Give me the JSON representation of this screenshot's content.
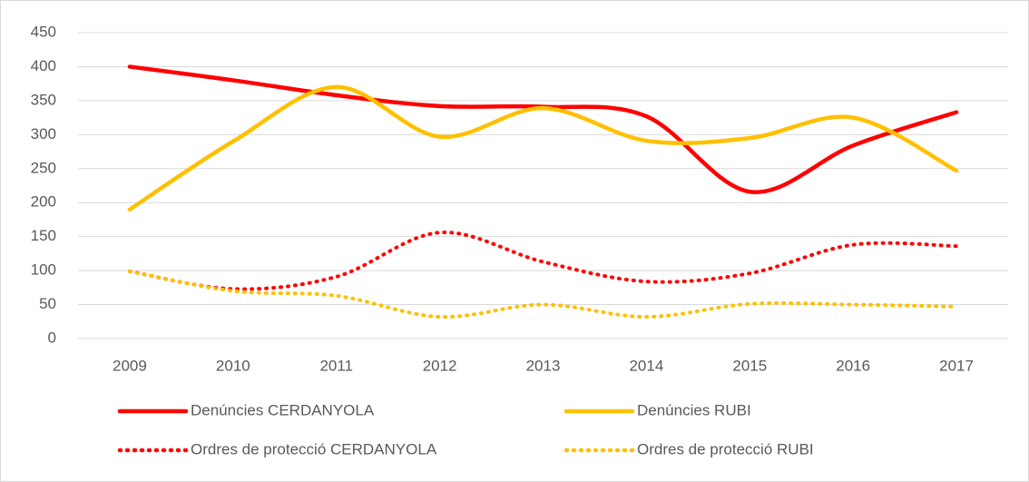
{
  "chart_data": {
    "type": "line",
    "categories": [
      "2009",
      "2010",
      "2011",
      "2012",
      "2013",
      "2014",
      "2015",
      "2016",
      "2017"
    ],
    "series": [
      {
        "name": "Denúncies CERDANYOLA",
        "color": "#ff0000",
        "style": "solid",
        "values": [
          400,
          380,
          358,
          342,
          341,
          327,
          216,
          284,
          333
        ]
      },
      {
        "name": "Denúncies RUBI",
        "color": "#ffc000",
        "style": "solid",
        "values": [
          190,
          290,
          370,
          297,
          339,
          291,
          295,
          325,
          247
        ]
      },
      {
        "name": "Ordres de protecció CERDANYOLA",
        "color": "#ff0000",
        "style": "dotted",
        "values": [
          99,
          73,
          91,
          156,
          113,
          84,
          96,
          138,
          136
        ]
      },
      {
        "name": "Ordres de protecció RUBI",
        "color": "#ffc000",
        "style": "dotted",
        "values": [
          99,
          70,
          63,
          32,
          50,
          32,
          51,
          50,
          47
        ]
      }
    ],
    "ylim": [
      0,
      450
    ],
    "yticks": [
      0,
      50,
      100,
      150,
      200,
      250,
      300,
      350,
      400,
      450
    ],
    "grid": true,
    "legend": "bottom"
  }
}
